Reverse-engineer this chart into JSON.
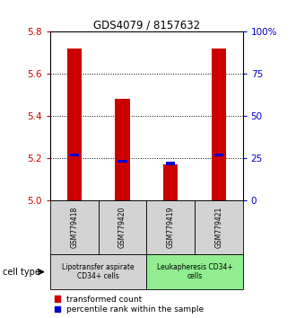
{
  "title": "GDS4079 / 8157632",
  "samples": [
    "GSM779418",
    "GSM779420",
    "GSM779419",
    "GSM779421"
  ],
  "red_values": [
    5.72,
    5.48,
    5.17,
    5.72
  ],
  "blue_values": [
    5.215,
    5.185,
    5.175,
    5.215
  ],
  "ylim": [
    5.0,
    5.8
  ],
  "y_ticks_left": [
    5.0,
    5.2,
    5.4,
    5.6,
    5.8
  ],
  "y_ticks_right": [
    0,
    25,
    50,
    75,
    100
  ],
  "cell_types": [
    {
      "label": "Lipotransfer aspirate\nCD34+ cells",
      "samples": [
        0,
        1
      ],
      "color": "#d3d3d3"
    },
    {
      "label": "Leukapheresis CD34+\ncells",
      "samples": [
        2,
        3
      ],
      "color": "#90ee90"
    }
  ],
  "bar_width": 0.3,
  "red_color": "#cc0000",
  "blue_color": "#0000cc",
  "legend_red_label": "transformed count",
  "legend_blue_label": "percentile rank within the sample",
  "cell_type_label": "cell type",
  "background_color": "#ffffff",
  "plot_bg_color": "#ffffff",
  "tick_label_color_left": "#cc0000",
  "tick_label_color_right": "#0000cc",
  "sample_box_color": "#d3d3d3"
}
